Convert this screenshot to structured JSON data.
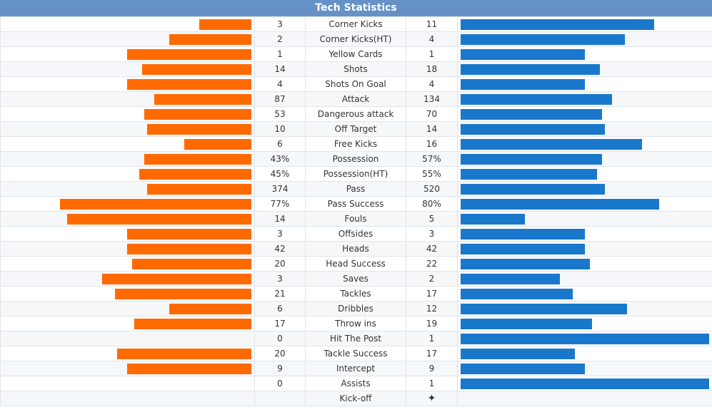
{
  "title": "Tech Statistics",
  "colors": {
    "home": "#ff6a00",
    "away": "#1a78cc",
    "header": "#6591c7"
  },
  "stats": [
    {
      "label": "Corner Kicks",
      "home": "3",
      "away": "11",
      "home_pct": 0.21,
      "away_pct": 0.78
    },
    {
      "label": "Corner Kicks(HT)",
      "home": "2",
      "away": "4",
      "home_pct": 0.33,
      "away_pct": 0.66
    },
    {
      "label": "Yellow Cards",
      "home": "1",
      "away": "1",
      "home_pct": 0.5,
      "away_pct": 0.5
    },
    {
      "label": "Shots",
      "home": "14",
      "away": "18",
      "home_pct": 0.44,
      "away_pct": 0.56
    },
    {
      "label": "Shots On Goal",
      "home": "4",
      "away": "4",
      "home_pct": 0.5,
      "away_pct": 0.5
    },
    {
      "label": "Attack",
      "home": "87",
      "away": "134",
      "home_pct": 0.39,
      "away_pct": 0.61
    },
    {
      "label": "Dangerous attack",
      "home": "53",
      "away": "70",
      "home_pct": 0.43,
      "away_pct": 0.57
    },
    {
      "label": "Off Target",
      "home": "10",
      "away": "14",
      "home_pct": 0.42,
      "away_pct": 0.58
    },
    {
      "label": "Free Kicks",
      "home": "6",
      "away": "16",
      "home_pct": 0.27,
      "away_pct": 0.73
    },
    {
      "label": "Possession",
      "home": "43%",
      "away": "57%",
      "home_pct": 0.43,
      "away_pct": 0.57
    },
    {
      "label": "Possession(HT)",
      "home": "45%",
      "away": "55%",
      "home_pct": 0.45,
      "away_pct": 0.55
    },
    {
      "label": "Pass",
      "home": "374",
      "away": "520",
      "home_pct": 0.42,
      "away_pct": 0.58
    },
    {
      "label": "Pass Success",
      "home": "77%",
      "away": "80%",
      "home_pct": 0.77,
      "away_pct": 0.8
    },
    {
      "label": "Fouls",
      "home": "14",
      "away": "5",
      "home_pct": 0.74,
      "away_pct": 0.26
    },
    {
      "label": "Offsides",
      "home": "3",
      "away": "3",
      "home_pct": 0.5,
      "away_pct": 0.5
    },
    {
      "label": "Heads",
      "home": "42",
      "away": "42",
      "home_pct": 0.5,
      "away_pct": 0.5
    },
    {
      "label": "Head Success",
      "home": "20",
      "away": "22",
      "home_pct": 0.48,
      "away_pct": 0.52
    },
    {
      "label": "Saves",
      "home": "3",
      "away": "2",
      "home_pct": 0.6,
      "away_pct": 0.4
    },
    {
      "label": "Tackles",
      "home": "21",
      "away": "17",
      "home_pct": 0.55,
      "away_pct": 0.45
    },
    {
      "label": "Dribbles",
      "home": "6",
      "away": "12",
      "home_pct": 0.33,
      "away_pct": 0.67
    },
    {
      "label": "Throw ins",
      "home": "17",
      "away": "19",
      "home_pct": 0.47,
      "away_pct": 0.53
    },
    {
      "label": "Hit The Post",
      "home": "0",
      "away": "1",
      "home_pct": 0.0,
      "away_pct": 1.0
    },
    {
      "label": "Tackle Success",
      "home": "20",
      "away": "17",
      "home_pct": 0.54,
      "away_pct": 0.46
    },
    {
      "label": "Intercept",
      "home": "9",
      "away": "9",
      "home_pct": 0.5,
      "away_pct": 0.5
    },
    {
      "label": "Assists",
      "home": "0",
      "away": "1",
      "home_pct": 0.0,
      "away_pct": 1.0
    }
  ],
  "kickoff": {
    "label": "Kick-off",
    "icon": "kickoff-icon"
  }
}
